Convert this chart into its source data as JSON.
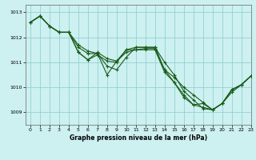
{
  "title": "Graphe pression niveau de la mer (hPa)",
  "background_color": "#cdf0f0",
  "grid_color": "#88cccc",
  "line_color": "#1a5c1a",
  "xlim": [
    -0.5,
    23
  ],
  "ylim": [
    1008.5,
    1013.3
  ],
  "yticks": [
    1009,
    1010,
    1011,
    1012,
    1013
  ],
  "xticks": [
    0,
    1,
    2,
    3,
    4,
    5,
    6,
    7,
    8,
    9,
    10,
    11,
    12,
    13,
    14,
    15,
    16,
    17,
    18,
    19,
    20,
    21,
    22,
    23
  ],
  "series": [
    [
      1012.6,
      1012.85,
      1012.45,
      1012.2,
      1012.2,
      1011.4,
      1011.1,
      1011.4,
      1011.15,
      1011.05,
      1011.5,
      1011.5,
      1011.55,
      1011.55,
      1010.7,
      1010.4,
      1010.0,
      1009.7,
      1009.4,
      1009.1,
      1009.35,
      1009.8,
      1010.1,
      1010.45
    ],
    [
      1012.6,
      1012.85,
      1012.45,
      1012.2,
      1012.2,
      1011.7,
      1011.45,
      1011.35,
      1010.85,
      1010.7,
      1011.2,
      1011.6,
      1011.6,
      1011.6,
      1011.0,
      1010.5,
      1009.85,
      1009.5,
      1009.15,
      1009.1,
      1009.35,
      1009.9,
      1010.1,
      1010.45
    ],
    [
      1012.6,
      1012.85,
      1012.45,
      1012.2,
      1012.2,
      1011.4,
      1011.1,
      1011.3,
      1011.05,
      1011.0,
      1011.5,
      1011.6,
      1011.6,
      1011.6,
      1010.7,
      1010.2,
      1009.6,
      1009.3,
      1009.35,
      1009.1,
      1009.35,
      1009.9,
      1010.1,
      1010.45
    ],
    [
      1012.6,
      1012.85,
      1012.45,
      1012.2,
      1012.2,
      1011.6,
      1011.35,
      1011.35,
      1010.5,
      1011.05,
      1011.4,
      1011.5,
      1011.5,
      1011.5,
      1010.6,
      1010.2,
      1009.7,
      1009.3,
      1009.2,
      1009.1,
      1009.35,
      1009.9,
      1010.1,
      1010.45
    ]
  ],
  "figsize": [
    3.2,
    2.0
  ],
  "dpi": 100
}
